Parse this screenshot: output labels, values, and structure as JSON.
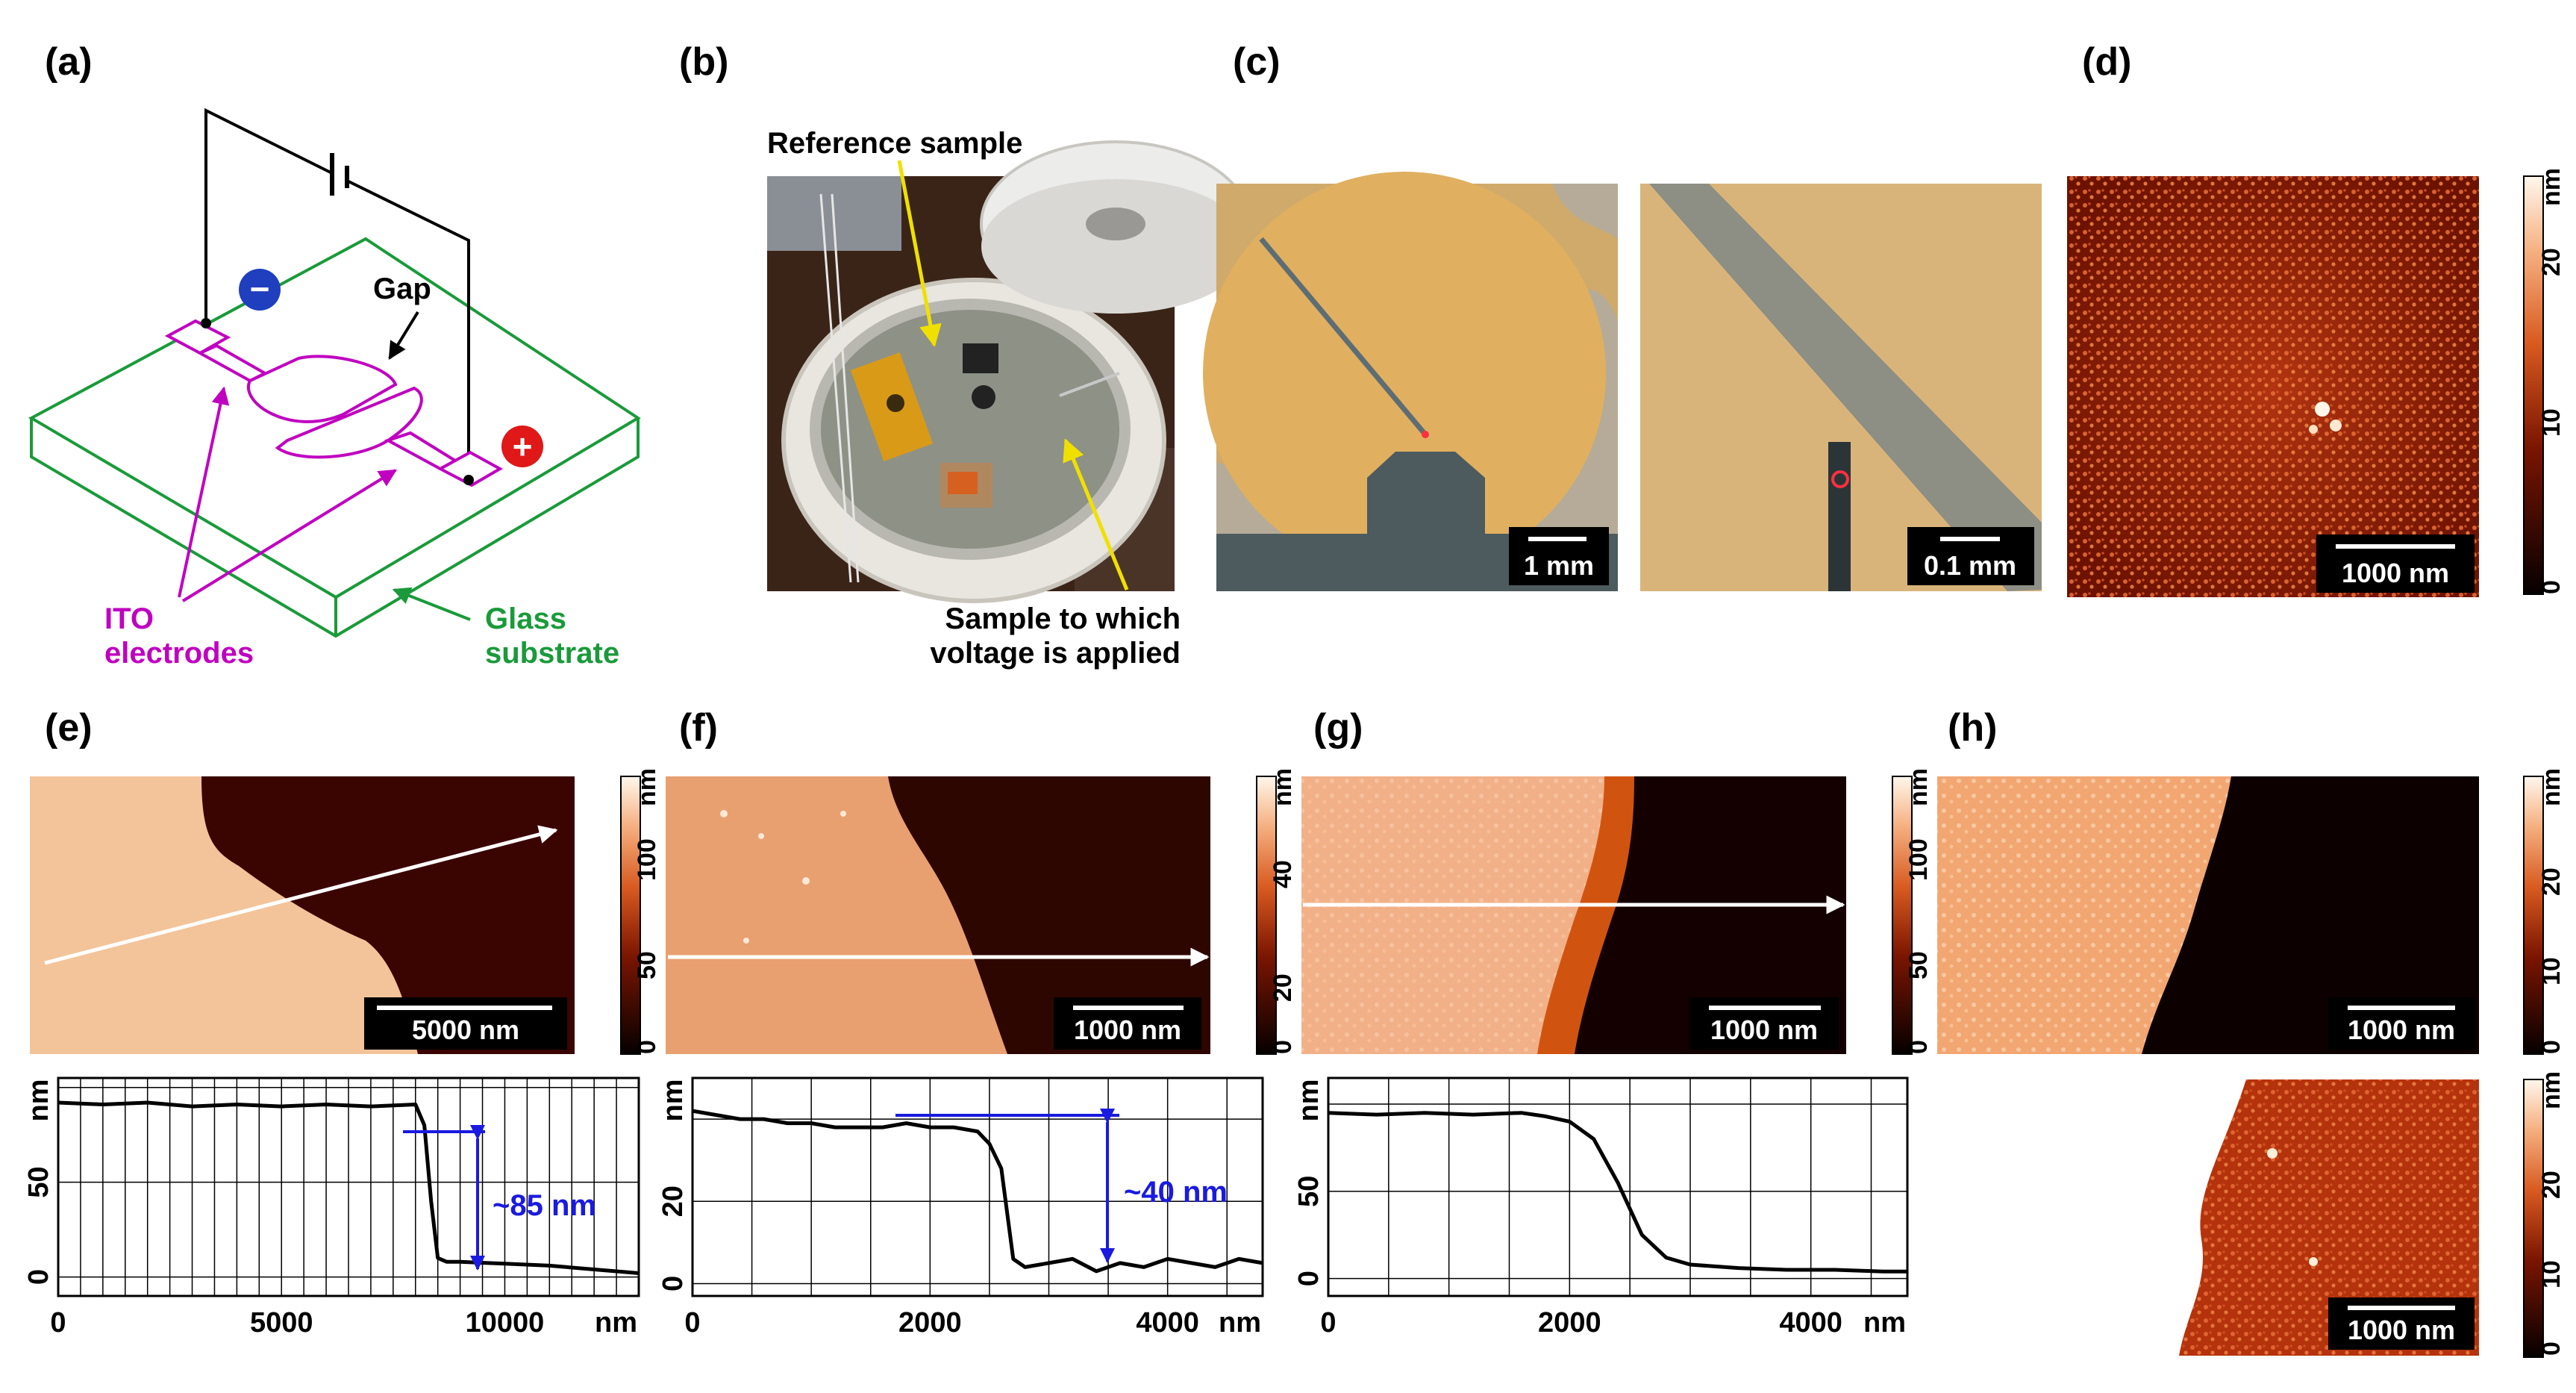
{
  "panels": {
    "a": {
      "label": "(a)",
      "gap": "Gap",
      "ito_line1": "ITO",
      "ito_line2": "electrodes",
      "glass_line1": "Glass",
      "glass_line2": "substrate",
      "minus": "−",
      "plus": "+",
      "colors": {
        "electrode": "#c000c0",
        "substrate": "#1a9a3a",
        "minus_badge": "#1f3fbf",
        "plus_badge": "#e01818"
      }
    },
    "b": {
      "label": "(b)",
      "reference": "Reference sample",
      "applied_line1": "Sample to which",
      "applied_line2": "voltage is applied",
      "arrow_color": "#f0e000"
    },
    "c": {
      "label": "(c)",
      "scale_left": "1 mm",
      "scale_right": "0.1 mm"
    },
    "d": {
      "label": "(d)",
      "scale": "1000 nm",
      "colorbar_unit": "nm",
      "colorbar_ticks": [
        "0",
        "10",
        "20"
      ]
    },
    "e": {
      "label": "(e)",
      "scale": "5000 nm",
      "colorbar_unit": "nm",
      "colorbar_ticks": [
        "0",
        "50",
        "100"
      ],
      "annotation": "~85 nm"
    },
    "f": {
      "label": "(f)",
      "scale": "1000 nm",
      "colorbar_unit": "nm",
      "colorbar_ticks": [
        "0",
        "20",
        "40"
      ],
      "annotation": "~40 nm"
    },
    "g": {
      "label": "(g)",
      "scale": "1000 nm",
      "colorbar_unit": "nm",
      "colorbar_ticks": [
        "0",
        "50",
        "100"
      ]
    },
    "h": {
      "label": "(h)",
      "scale_top": "1000 nm",
      "scale_bottom": "1000 nm",
      "colorbar_unit": "nm",
      "colorbar_ticks": [
        "0",
        "10",
        "20"
      ]
    }
  },
  "chart_data": [
    {
      "type": "line",
      "panel": "e",
      "xlabel": "nm",
      "ylabel": "nm",
      "xlim": [
        0,
        13000
      ],
      "ylim": [
        -10,
        105
      ],
      "xticks": [
        "0",
        "5000",
        "10000"
      ],
      "yticks": [
        "0",
        "50"
      ],
      "grid": true,
      "x": [
        0,
        1000,
        2000,
        3000,
        4000,
        5000,
        6000,
        7000,
        8000,
        8200,
        8350,
        8500,
        8700,
        9000,
        10000,
        11000,
        12000,
        12500,
        13000
      ],
      "y": [
        92,
        91,
        92,
        90,
        91,
        90,
        91,
        90,
        91,
        80,
        40,
        10,
        8,
        8,
        7,
        6,
        4,
        3,
        2
      ]
    },
    {
      "type": "line",
      "panel": "f",
      "xlabel": "nm",
      "ylabel": "nm",
      "xlim": [
        0,
        4800
      ],
      "ylim": [
        -3,
        50
      ],
      "xticks": [
        "0",
        "2000",
        "4000"
      ],
      "yticks": [
        "0",
        "20"
      ],
      "grid": true,
      "x": [
        0,
        200,
        400,
        600,
        800,
        1000,
        1200,
        1400,
        1600,
        1800,
        2000,
        2200,
        2400,
        2500,
        2600,
        2700,
        2800,
        3000,
        3200,
        3400,
        3600,
        3800,
        4000,
        4200,
        4400,
        4600,
        4800
      ],
      "y": [
        42,
        41,
        40,
        40,
        39,
        39,
        38,
        38,
        38,
        39,
        38,
        38,
        37,
        34,
        28,
        6,
        4,
        5,
        6,
        3,
        5,
        4,
        6,
        5,
        4,
        6,
        5
      ]
    },
    {
      "type": "line",
      "panel": "g",
      "xlabel": "nm",
      "ylabel": "nm",
      "xlim": [
        0,
        4800
      ],
      "ylim": [
        -10,
        115
      ],
      "xticks": [
        "0",
        "2000",
        "4000"
      ],
      "yticks": [
        "0",
        "50"
      ],
      "grid": true,
      "x": [
        0,
        400,
        800,
        1200,
        1600,
        1800,
        2000,
        2200,
        2400,
        2600,
        2800,
        3000,
        3400,
        3800,
        4200,
        4600,
        4800
      ],
      "y": [
        95,
        94,
        95,
        94,
        95,
        93,
        90,
        80,
        55,
        25,
        12,
        8,
        6,
        5,
        5,
        4,
        4
      ]
    }
  ]
}
